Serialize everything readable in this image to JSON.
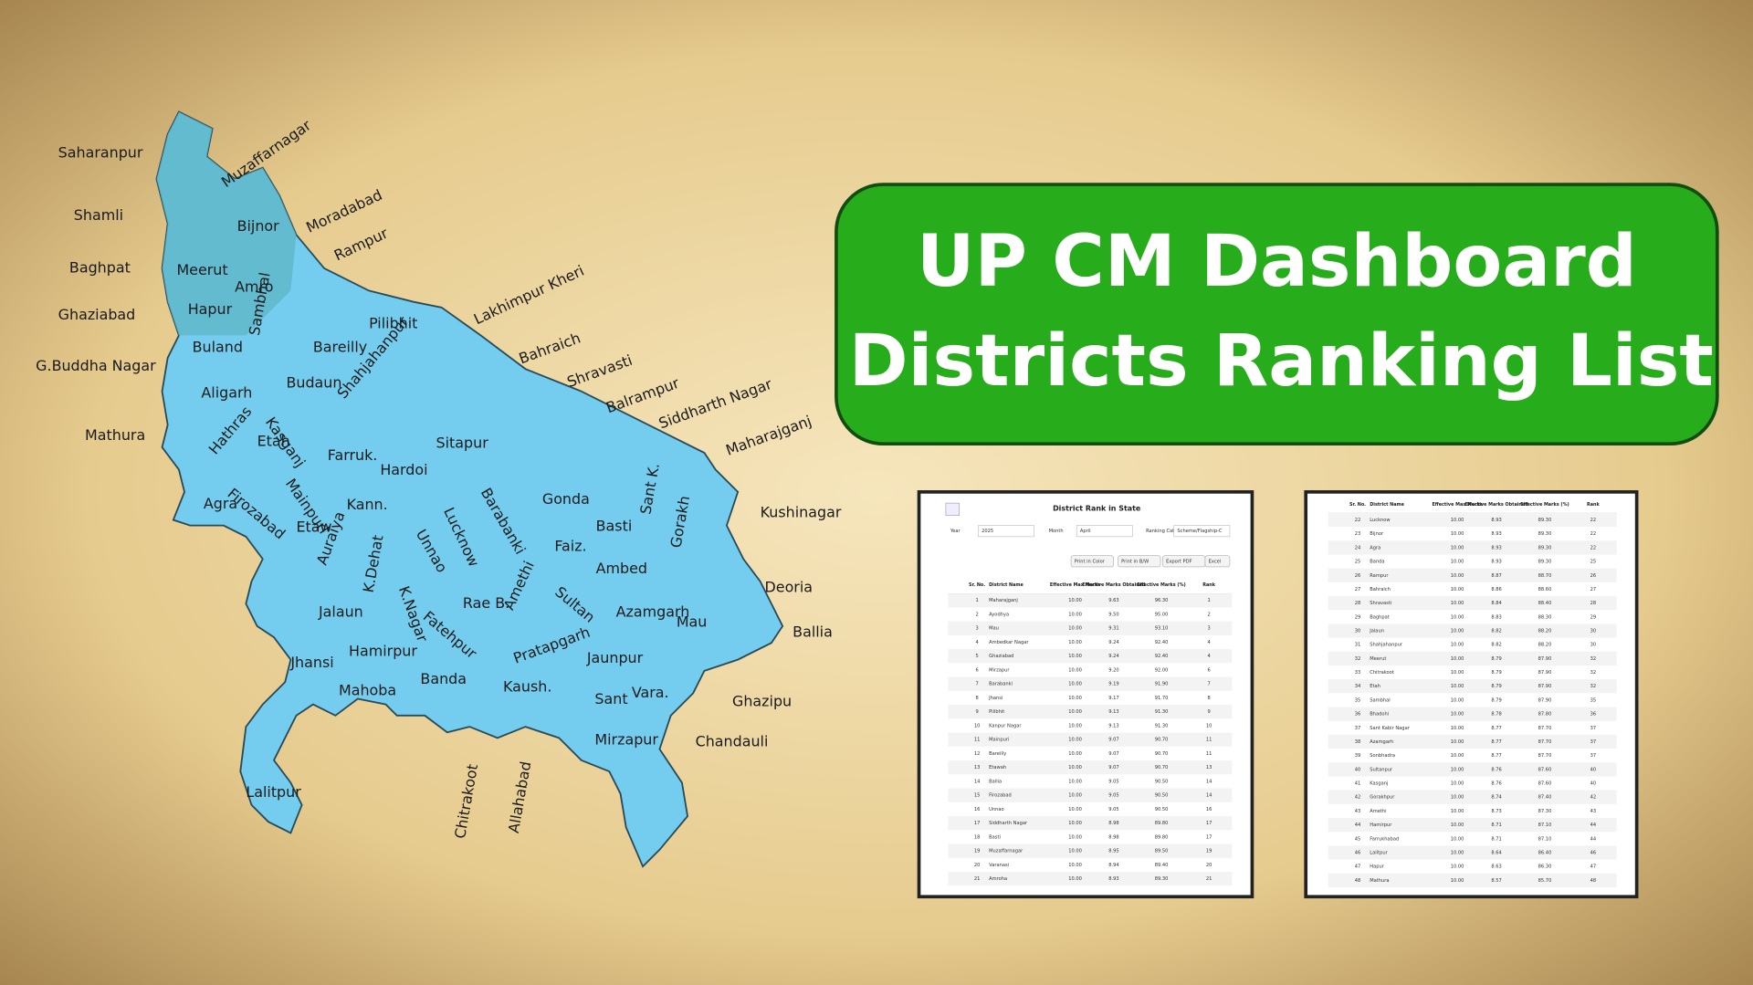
{
  "title": {
    "line1": "UP CM Dashboard",
    "line2": "Districts Ranking List"
  },
  "map": {
    "labels": [
      "Saharanpur",
      "Muzaffarnagar",
      "Shamli",
      "Bijnor",
      "Moradabad",
      "Baghpat",
      "Meerut",
      "Rampur",
      "Amro",
      "Hapur",
      "Ghaziabad",
      "Sambhal",
      "Lakhimpur Kheri",
      "Pilibhit",
      "Buland",
      "Bareilly",
      "G.Buddha Nagar",
      "Bahraich",
      "Shahjahanpur",
      "Budaun",
      "Shravasti",
      "Aligarh",
      "Balrampur",
      "Kasganj",
      "Siddharth Nagar",
      "Mathura",
      "Hathras",
      "Etah",
      "Maharajganj",
      "Farruk.",
      "Sitapur",
      "Hardoi",
      "Firozabad",
      "Mainpuri",
      "Barabanki",
      "Gonda",
      "Agra",
      "Kann.",
      "Lucknow",
      "Basti",
      "Kushinagar",
      "Sant K.",
      "Gorakh",
      "Etaw",
      "Auraiya",
      "Faiz.",
      "Unnao",
      "K.Dehat",
      "Ambed",
      "Deoria",
      "Amethi",
      "Sultan",
      "Azamgarh",
      "Mau",
      "Rae B.",
      "K.Nagar",
      "Jalaun",
      "Ballia",
      "Fatehpur",
      "Jhansi",
      "Hamirpur",
      "Pratapgarh",
      "Jaunpur",
      "Ghazipu",
      "Mahoba",
      "Banda",
      "Kaush.",
      "Sant",
      "Vara.",
      "Chandauli",
      "Mirzapur",
      "Lalitpur",
      "Chitrakoot",
      "Allahabad"
    ]
  },
  "table_left": {
    "title": "District Rank in State",
    "filters": [
      {
        "label": "Year",
        "value": "2025"
      },
      {
        "label": "Month",
        "value": "April"
      },
      {
        "label": "Ranking Category",
        "value": "Scheme/Flagship-C"
      }
    ],
    "buttons": [
      "Print in Color",
      "Print in B/W",
      "Export PDF",
      "Excel"
    ],
    "headers": [
      "Sr. No.",
      "District Name",
      "Effective Max Marks",
      "Effective Marks Obtained",
      "Effective Marks (%)",
      "Rank"
    ],
    "rows": [
      [
        "1",
        "Maharajganj",
        "10.00",
        "9.63",
        "96.30",
        "1"
      ],
      [
        "2",
        "Ayodhya",
        "10.00",
        "9.50",
        "95.00",
        "2"
      ],
      [
        "3",
        "Mau",
        "10.00",
        "9.31",
        "93.10",
        "3"
      ],
      [
        "4",
        "Ambedkar Nagar",
        "10.00",
        "9.24",
        "92.40",
        "4"
      ],
      [
        "5",
        "Ghaziabad",
        "10.00",
        "9.24",
        "92.40",
        "4"
      ],
      [
        "6",
        "Mirzapur",
        "10.00",
        "9.20",
        "92.00",
        "6"
      ],
      [
        "7",
        "Barabanki",
        "10.00",
        "9.19",
        "91.90",
        "7"
      ],
      [
        "8",
        "Jhansi",
        "10.00",
        "9.17",
        "91.70",
        "8"
      ],
      [
        "9",
        "Pilibhit",
        "10.00",
        "9.13",
        "91.30",
        "9"
      ],
      [
        "10",
        "Kanpur Nagar",
        "10.00",
        "9.13",
        "91.30",
        "10"
      ],
      [
        "11",
        "Mainpuri",
        "10.00",
        "9.07",
        "90.70",
        "11"
      ],
      [
        "12",
        "Bareilly",
        "10.00",
        "9.07",
        "90.70",
        "11"
      ],
      [
        "13",
        "Etawah",
        "10.00",
        "9.07",
        "90.70",
        "13"
      ],
      [
        "14",
        "Ballia",
        "10.00",
        "9.05",
        "90.50",
        "14"
      ],
      [
        "15",
        "Firozabad",
        "10.00",
        "9.05",
        "90.50",
        "14"
      ],
      [
        "16",
        "Unnao",
        "10.00",
        "9.05",
        "90.50",
        "16"
      ],
      [
        "17",
        "Siddharth Nagar",
        "10.00",
        "8.98",
        "89.80",
        "17"
      ],
      [
        "18",
        "Basti",
        "10.00",
        "8.98",
        "89.80",
        "17"
      ],
      [
        "19",
        "Muzaffarnagar",
        "10.00",
        "8.95",
        "89.50",
        "19"
      ],
      [
        "20",
        "Varanasi",
        "10.00",
        "8.94",
        "89.40",
        "20"
      ],
      [
        "21",
        "Amroha",
        "10.00",
        "8.93",
        "89.30",
        "21"
      ]
    ]
  },
  "table_right": {
    "headers": [
      "Sr. No.",
      "District Name",
      "Effective Max Marks",
      "Effective Marks Obtained",
      "Effective Marks (%)",
      "Rank"
    ],
    "rows": [
      [
        "22",
        "Lucknow",
        "10.00",
        "8.93",
        "89.30",
        "22"
      ],
      [
        "23",
        "Bijnor",
        "10.00",
        "8.93",
        "89.30",
        "22"
      ],
      [
        "24",
        "Agra",
        "10.00",
        "8.93",
        "89.30",
        "22"
      ],
      [
        "25",
        "Banda",
        "10.00",
        "8.93",
        "89.30",
        "25"
      ],
      [
        "26",
        "Rampur",
        "10.00",
        "8.87",
        "88.70",
        "26"
      ],
      [
        "27",
        "Bahraich",
        "10.00",
        "8.86",
        "88.60",
        "27"
      ],
      [
        "28",
        "Shravasti",
        "10.00",
        "8.84",
        "88.40",
        "28"
      ],
      [
        "29",
        "Baghpat",
        "10.00",
        "8.83",
        "88.30",
        "29"
      ],
      [
        "30",
        "Jalaun",
        "10.00",
        "8.82",
        "88.20",
        "30"
      ],
      [
        "31",
        "Shahjahanpur",
        "10.00",
        "8.82",
        "88.20",
        "30"
      ],
      [
        "32",
        "Meerut",
        "10.00",
        "8.79",
        "87.90",
        "32"
      ],
      [
        "33",
        "Chitrakoot",
        "10.00",
        "8.79",
        "87.90",
        "32"
      ],
      [
        "34",
        "Etah",
        "10.00",
        "8.79",
        "87.90",
        "32"
      ],
      [
        "35",
        "Sambhal",
        "10.00",
        "8.79",
        "87.90",
        "35"
      ],
      [
        "36",
        "Bhadohi",
        "10.00",
        "8.78",
        "87.80",
        "36"
      ],
      [
        "37",
        "Sant Kabir Nagar",
        "10.00",
        "8.77",
        "87.70",
        "37"
      ],
      [
        "38",
        "Azamgarh",
        "10.00",
        "8.77",
        "87.70",
        "37"
      ],
      [
        "39",
        "Sonbhadra",
        "10.00",
        "8.77",
        "87.70",
        "37"
      ],
      [
        "40",
        "Sultanpur",
        "10.00",
        "8.76",
        "87.60",
        "40"
      ],
      [
        "41",
        "Kasganj",
        "10.00",
        "8.76",
        "87.60",
        "40"
      ],
      [
        "42",
        "Gorakhpur",
        "10.00",
        "8.74",
        "87.40",
        "42"
      ],
      [
        "43",
        "Amethi",
        "10.00",
        "8.73",
        "87.30",
        "43"
      ],
      [
        "44",
        "Hamirpur",
        "10.00",
        "8.71",
        "87.10",
        "44"
      ],
      [
        "45",
        "Farrukhabad",
        "10.00",
        "8.71",
        "87.10",
        "44"
      ],
      [
        "46",
        "Lalitpur",
        "10.00",
        "8.64",
        "86.40",
        "46"
      ],
      [
        "47",
        "Hapur",
        "10.00",
        "8.63",
        "86.30",
        "47"
      ],
      [
        "48",
        "Mathura",
        "10.00",
        "8.57",
        "85.70",
        "48"
      ]
    ]
  }
}
